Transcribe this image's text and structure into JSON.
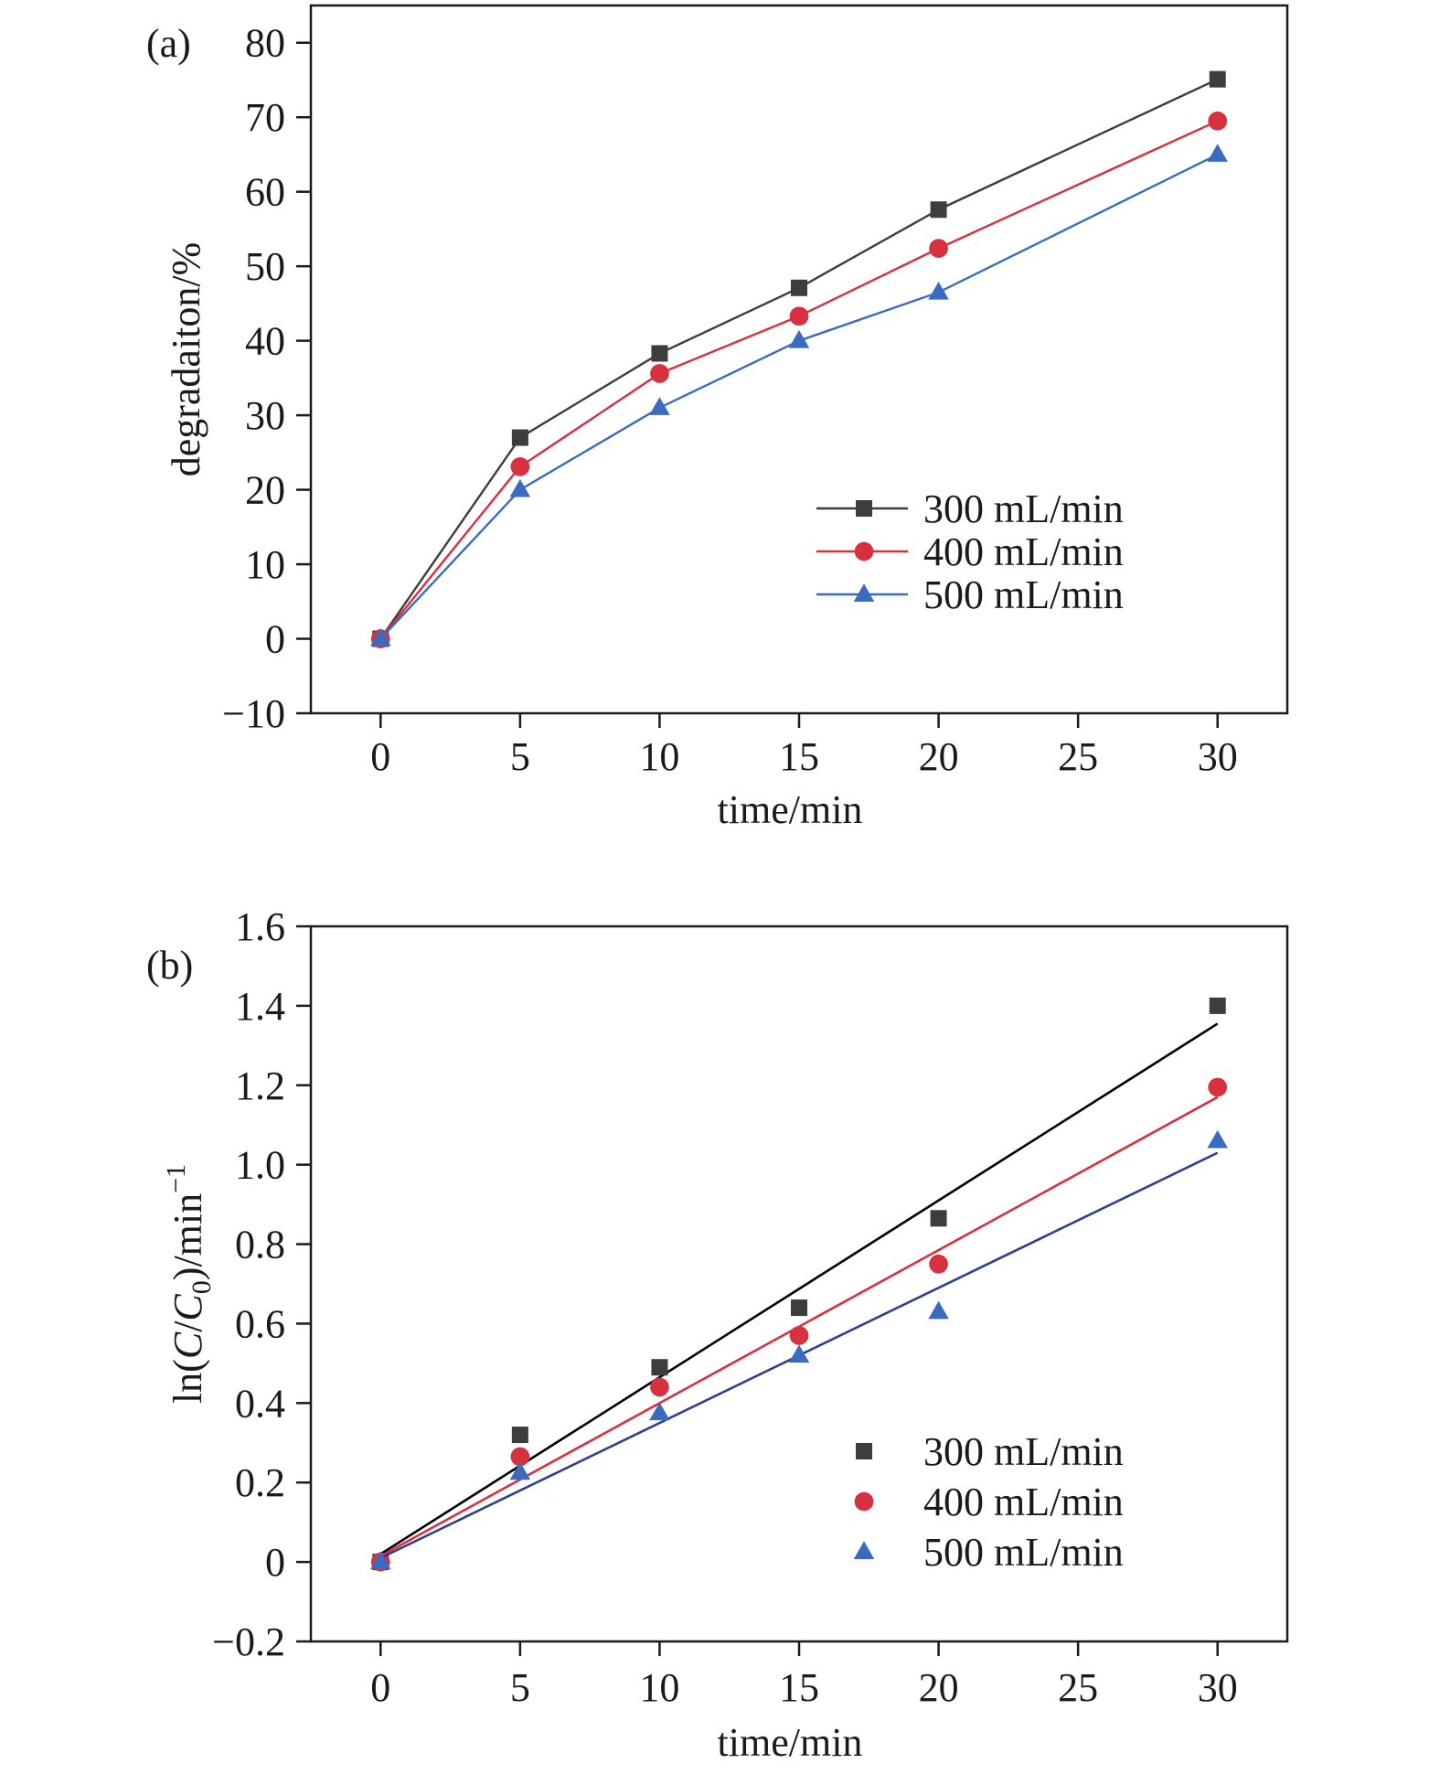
{
  "chart_data": [
    {
      "panel_label": "(a)",
      "type": "line",
      "xlabel": "time/min",
      "ylabel": "degradaiton/%",
      "x_ticks": [
        0,
        5,
        10,
        15,
        20,
        25,
        30
      ],
      "y_ticks": [
        -10,
        0,
        10,
        20,
        30,
        40,
        50,
        60,
        70,
        80
      ],
      "xlim": [
        -2.5,
        32.5
      ],
      "ylim": [
        -10,
        85
      ],
      "legend_position": "right-middle",
      "x": [
        0,
        5,
        10,
        15,
        20,
        30
      ],
      "series": [
        {
          "name": "300 mL/min",
          "color": "#3d3d3d",
          "marker": "square",
          "values": [
            0,
            27,
            38.3,
            47.1,
            57.6,
            75.1
          ]
        },
        {
          "name": "400 mL/min",
          "color": "#d7303f",
          "marker": "circle",
          "values": [
            0,
            23.1,
            35.6,
            43.3,
            52.4,
            69.5
          ]
        },
        {
          "name": "500 mL/min",
          "color": "#3b6bbf",
          "marker": "triangle",
          "values": [
            0,
            20,
            31,
            40,
            46.5,
            65
          ]
        }
      ]
    },
    {
      "panel_label": "(b)",
      "type": "scatter",
      "xlabel": "time/min",
      "ylabel_parts": [
        "ln(",
        "C",
        "/",
        "C",
        "0",
        ")/min",
        "−1"
      ],
      "x_ticks": [
        0,
        5,
        10,
        15,
        20,
        25,
        30
      ],
      "y_ticks": [
        -0.2,
        0,
        0.2,
        0.4,
        0.6,
        0.8,
        1.0,
        1.2,
        1.4,
        1.6
      ],
      "y_tick_labels": [
        "−0.2",
        "0",
        "0.2",
        "0.4",
        "0.6",
        "0.8",
        "1.0",
        "1.2",
        "1.4",
        "1.6"
      ],
      "xlim": [
        -2.5,
        32.5
      ],
      "ylim": [
        -0.2,
        1.6
      ],
      "legend_position": "bottom-right",
      "x": [
        0,
        5,
        10,
        15,
        20,
        30
      ],
      "series": [
        {
          "name": "300 mL/min",
          "color": "#3d3d3d",
          "fit_color": "#000000",
          "marker": "square",
          "values": [
            0,
            0.32,
            0.49,
            0.64,
            0.865,
            1.4
          ],
          "fit": [
            0.02,
            0.0445
          ]
        },
        {
          "name": "400 mL/min",
          "color": "#d7303f",
          "fit_color": "#d7303f",
          "marker": "circle",
          "values": [
            0,
            0.265,
            0.44,
            0.57,
            0.75,
            1.195
          ],
          "fit": [
            0.015,
            0.0385
          ]
        },
        {
          "name": "500 mL/min",
          "color": "#3b6bbf",
          "fit_color": "#2d3f8e",
          "marker": "triangle",
          "values": [
            0,
            0.225,
            0.375,
            0.52,
            0.63,
            1.06
          ],
          "fit": [
            0.01,
            0.034
          ]
        }
      ]
    }
  ]
}
